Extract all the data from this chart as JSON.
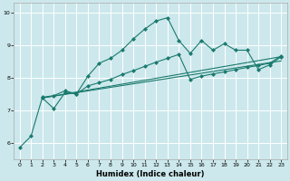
{
  "xlabel": "Humidex (Indice chaleur)",
  "background_color": "#cce8ec",
  "grid_color": "#ffffff",
  "line_color": "#1a7a6e",
  "xlim": [
    -0.5,
    23.5
  ],
  "ylim": [
    5.5,
    10.3
  ],
  "yticks": [
    6,
    7,
    8,
    9,
    10
  ],
  "xticks": [
    0,
    1,
    2,
    3,
    4,
    5,
    6,
    7,
    8,
    9,
    10,
    11,
    12,
    13,
    14,
    15,
    16,
    17,
    18,
    19,
    20,
    21,
    22,
    23
  ],
  "series1_x": [
    0,
    1,
    2,
    3,
    4,
    5,
    6,
    7,
    8,
    9,
    10,
    11,
    12,
    13,
    14,
    15,
    16,
    17,
    18,
    19,
    20,
    21,
    22,
    23
  ],
  "series1_y": [
    5.85,
    6.2,
    7.4,
    7.45,
    7.6,
    7.5,
    8.05,
    8.45,
    8.6,
    8.85,
    9.2,
    9.5,
    9.75,
    9.85,
    9.15,
    8.75,
    9.15,
    8.85,
    9.05,
    8.85,
    8.85,
    8.25,
    8.4,
    8.65
  ],
  "series2_x": [
    2,
    3,
    4,
    5,
    6,
    7,
    8,
    9,
    10,
    11,
    12,
    13,
    14,
    15,
    16,
    17,
    18,
    19,
    20,
    21,
    22,
    23
  ],
  "series2_y": [
    7.38,
    7.05,
    7.55,
    7.5,
    7.75,
    7.85,
    7.95,
    8.1,
    8.22,
    8.35,
    8.48,
    8.6,
    8.72,
    7.95,
    8.05,
    8.12,
    8.18,
    8.25,
    8.32,
    8.38,
    8.45,
    8.68
  ],
  "series3_x": [
    2,
    23
  ],
  "series3_y": [
    7.38,
    8.65
  ],
  "series4_x": [
    2,
    23
  ],
  "series4_y": [
    7.38,
    8.52
  ]
}
